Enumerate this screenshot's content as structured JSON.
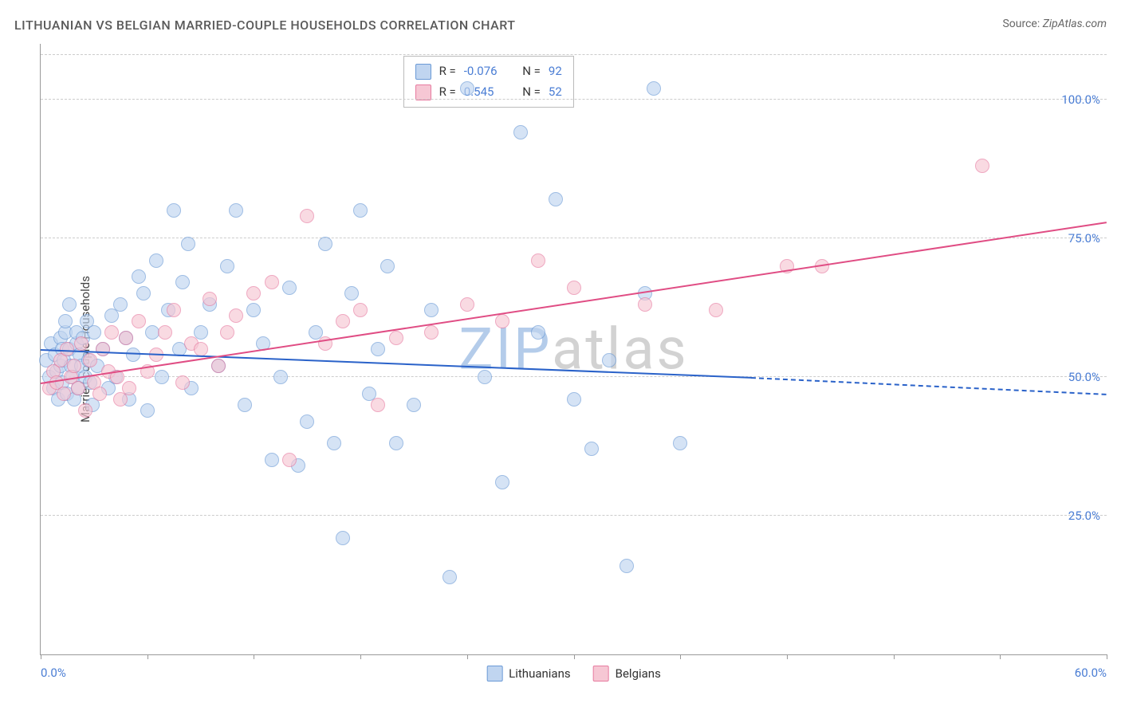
{
  "title": "LITHUANIAN VS BELGIAN MARRIED-COUPLE HOUSEHOLDS CORRELATION CHART",
  "source_label": "Source:",
  "source_name": "ZipAtlas.com",
  "chart": {
    "type": "scatter",
    "background_color": "#ffffff",
    "grid_color": "#cccccc",
    "tick_color": "#4a7dd4",
    "axis_color": "#999999",
    "xlim": [
      0,
      60
    ],
    "ylim": [
      0,
      110
    ],
    "x_axis": {
      "start_label": "0.0%",
      "end_label": "60.0%",
      "tick_positions": [
        0,
        6,
        12,
        18,
        24,
        30,
        36,
        42,
        48,
        54,
        60
      ]
    },
    "y_axis": {
      "label": "Married-couple Households",
      "gridlines": [
        25,
        50,
        75,
        100
      ],
      "tick_labels": {
        "25": "25.0%",
        "50": "50.0%",
        "75": "75.0%",
        "100": "100.0%"
      },
      "top_gridline": 108
    },
    "marker_radius": 9,
    "marker_border_width": 1.5,
    "series": [
      {
        "name": "Lithuanians",
        "fill": "#c0d5f0",
        "stroke": "#6b9ad6",
        "R": "-0.076",
        "N": "92",
        "trend": {
          "x1": 0,
          "y1": 55,
          "x2": 40,
          "y2": 50,
          "xd": 60,
          "yd": 47,
          "color": "#2a62c9"
        },
        "points": [
          [
            0.3,
            53
          ],
          [
            0.5,
            50
          ],
          [
            0.6,
            56
          ],
          [
            0.7,
            48
          ],
          [
            0.8,
            54
          ],
          [
            0.9,
            51
          ],
          [
            1.0,
            46
          ],
          [
            1.1,
            52
          ],
          [
            1.1,
            57
          ],
          [
            1.2,
            49
          ],
          [
            1.2,
            55
          ],
          [
            1.3,
            53
          ],
          [
            1.4,
            58
          ],
          [
            1.4,
            60
          ],
          [
            1.5,
            47
          ],
          [
            1.6,
            55
          ],
          [
            1.6,
            63
          ],
          [
            1.7,
            52
          ],
          [
            1.8,
            50
          ],
          [
            1.9,
            46
          ],
          [
            2.0,
            56
          ],
          [
            2.0,
            58
          ],
          [
            2.1,
            48
          ],
          [
            2.2,
            54
          ],
          [
            2.3,
            52
          ],
          [
            2.4,
            57
          ],
          [
            2.5,
            50
          ],
          [
            2.6,
            60
          ],
          [
            2.7,
            53
          ],
          [
            2.8,
            49
          ],
          [
            2.9,
            45
          ],
          [
            3.0,
            58
          ],
          [
            3.2,
            52
          ],
          [
            3.5,
            55
          ],
          [
            3.8,
            48
          ],
          [
            4.0,
            61
          ],
          [
            4.2,
            50
          ],
          [
            4.5,
            63
          ],
          [
            4.8,
            57
          ],
          [
            5.0,
            46
          ],
          [
            5.2,
            54
          ],
          [
            5.5,
            68
          ],
          [
            5.8,
            65
          ],
          [
            6.0,
            44
          ],
          [
            6.3,
            58
          ],
          [
            6.5,
            71
          ],
          [
            6.8,
            50
          ],
          [
            7.2,
            62
          ],
          [
            7.5,
            80
          ],
          [
            7.8,
            55
          ],
          [
            8.0,
            67
          ],
          [
            8.3,
            74
          ],
          [
            8.5,
            48
          ],
          [
            9.0,
            58
          ],
          [
            9.5,
            63
          ],
          [
            10.0,
            52
          ],
          [
            10.5,
            70
          ],
          [
            11.0,
            80
          ],
          [
            11.5,
            45
          ],
          [
            12.0,
            62
          ],
          [
            12.5,
            56
          ],
          [
            13.0,
            35
          ],
          [
            13.5,
            50
          ],
          [
            14.0,
            66
          ],
          [
            14.5,
            34
          ],
          [
            15.0,
            42
          ],
          [
            15.5,
            58
          ],
          [
            16.0,
            74
          ],
          [
            16.5,
            38
          ],
          [
            17.0,
            21
          ],
          [
            17.5,
            65
          ],
          [
            18.0,
            80
          ],
          [
            18.5,
            47
          ],
          [
            19.0,
            55
          ],
          [
            19.5,
            70
          ],
          [
            20.0,
            38
          ],
          [
            21.0,
            45
          ],
          [
            22.0,
            62
          ],
          [
            23.0,
            14
          ],
          [
            24.0,
            102
          ],
          [
            25.0,
            50
          ],
          [
            26.0,
            31
          ],
          [
            27.0,
            94
          ],
          [
            28.0,
            58
          ],
          [
            29.0,
            82
          ],
          [
            30.0,
            46
          ],
          [
            31.0,
            37
          ],
          [
            32.0,
            53
          ],
          [
            33.0,
            16
          ],
          [
            34.0,
            65
          ],
          [
            36.0,
            38
          ],
          [
            34.5,
            102
          ]
        ]
      },
      {
        "name": "Belgians",
        "fill": "#f6c7d4",
        "stroke": "#e77ba0",
        "R": "0.545",
        "N": "52",
        "trend": {
          "x1": 0,
          "y1": 49,
          "x2": 60,
          "y2": 78,
          "color": "#e04d84"
        },
        "points": [
          [
            0.5,
            48
          ],
          [
            0.7,
            51
          ],
          [
            0.9,
            49
          ],
          [
            1.1,
            53
          ],
          [
            1.3,
            47
          ],
          [
            1.5,
            55
          ],
          [
            1.7,
            50
          ],
          [
            1.9,
            52
          ],
          [
            2.1,
            48
          ],
          [
            2.3,
            56
          ],
          [
            2.5,
            44
          ],
          [
            2.8,
            53
          ],
          [
            3.0,
            49
          ],
          [
            3.3,
            47
          ],
          [
            3.5,
            55
          ],
          [
            3.8,
            51
          ],
          [
            4.0,
            58
          ],
          [
            4.3,
            50
          ],
          [
            4.5,
            46
          ],
          [
            4.8,
            57
          ],
          [
            5.0,
            48
          ],
          [
            5.5,
            60
          ],
          [
            6.0,
            51
          ],
          [
            6.5,
            54
          ],
          [
            7.0,
            58
          ],
          [
            7.5,
            62
          ],
          [
            8.0,
            49
          ],
          [
            8.5,
            56
          ],
          [
            9.0,
            55
          ],
          [
            9.5,
            64
          ],
          [
            10.0,
            52
          ],
          [
            10.5,
            58
          ],
          [
            11.0,
            61
          ],
          [
            12.0,
            65
          ],
          [
            13.0,
            67
          ],
          [
            14.0,
            35
          ],
          [
            15.0,
            79
          ],
          [
            16.0,
            56
          ],
          [
            17.0,
            60
          ],
          [
            18.0,
            62
          ],
          [
            19.0,
            45
          ],
          [
            20.0,
            57
          ],
          [
            22.0,
            58
          ],
          [
            24.0,
            63
          ],
          [
            26.0,
            60
          ],
          [
            28.0,
            71
          ],
          [
            30.0,
            66
          ],
          [
            34.0,
            63
          ],
          [
            38.0,
            62
          ],
          [
            42.0,
            70
          ],
          [
            44.0,
            70
          ],
          [
            53.0,
            88
          ]
        ]
      }
    ],
    "legend_box": {
      "top_pct": 2,
      "left_pct": 34
    },
    "watermark": {
      "text_a": "ZIP",
      "color_a": "#6b9ad6",
      "text_b": "atlas",
      "color_b": "#a6a6a6",
      "fontsize": 72
    }
  }
}
